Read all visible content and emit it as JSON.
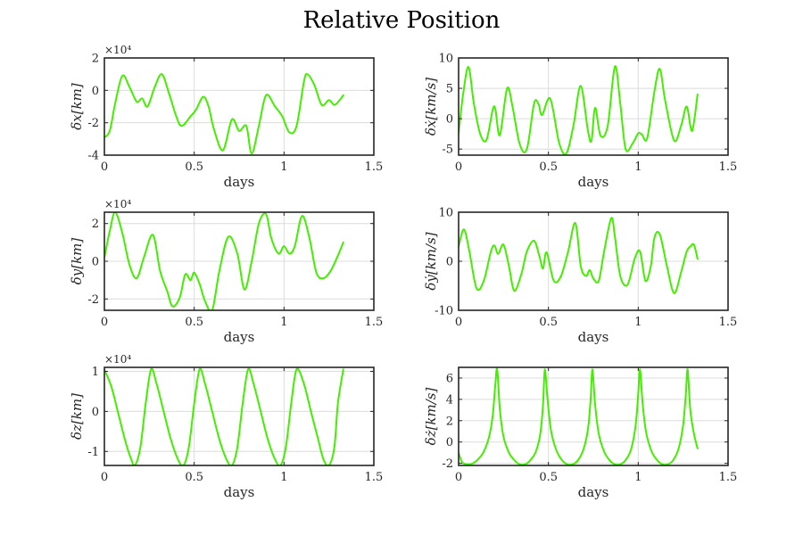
{
  "figure_title": "Relative Position",
  "colors": {
    "series": "#44ee00",
    "axes": "#262626",
    "grid": "#dcdcdc"
  },
  "chart_data": [
    {
      "type": "line",
      "xlabel": "days",
      "ylabel": "δx[km]",
      "y_exponent": "×10⁴",
      "xlim": [
        0,
        1.5
      ],
      "ylim": [
        -4,
        2
      ],
      "xticks": [
        "0",
        "0.5",
        "1",
        "1.5"
      ],
      "yticks": [
        "-4",
        "-2",
        "0",
        "2"
      ],
      "grid": true,
      "series": [
        {
          "x": [
            0,
            0.03,
            0.06,
            0.1,
            0.14,
            0.18,
            0.21,
            0.24,
            0.28,
            0.32,
            0.36,
            0.4,
            0.43,
            0.48,
            0.51,
            0.55,
            0.58,
            0.61,
            0.66,
            0.71,
            0.75,
            0.79,
            0.82,
            0.86,
            0.9,
            0.95,
            0.99,
            1.03,
            1.07,
            1.11,
            1.13,
            1.17,
            1.21,
            1.25,
            1.28,
            1.31,
            1.33
          ],
          "y": [
            -2.9,
            -2.5,
            -0.8,
            0.9,
            0.2,
            -0.7,
            -0.5,
            -1.0,
            0.2,
            1.0,
            -0.2,
            -1.6,
            -2.2,
            -1.6,
            -1.2,
            -0.4,
            -1.0,
            -2.4,
            -3.7,
            -1.8,
            -2.5,
            -2.2,
            -3.9,
            -2.2,
            -0.3,
            -1.0,
            -1.6,
            -2.6,
            -2.2,
            0.5,
            1.0,
            0.3,
            -0.9,
            -0.6,
            -0.9,
            -0.6,
            -0.3
          ]
        }
      ]
    },
    {
      "type": "line",
      "xlabel": "days",
      "ylabel": "δẋ[km/s]",
      "xlim": [
        0,
        1.5
      ],
      "ylim": [
        -6,
        10
      ],
      "xticks": [
        "0",
        "0.5",
        "1",
        "1.5"
      ],
      "yticks": [
        "-5",
        "0",
        "5",
        "10"
      ],
      "grid": true,
      "series": [
        {
          "x": [
            0,
            0.025,
            0.055,
            0.085,
            0.12,
            0.155,
            0.19,
            0.205,
            0.23,
            0.27,
            0.3,
            0.34,
            0.38,
            0.42,
            0.445,
            0.465,
            0.51,
            0.56,
            0.6,
            0.64,
            0.68,
            0.72,
            0.74,
            0.76,
            0.79,
            0.83,
            0.87,
            0.9,
            0.93,
            0.97,
            1.0,
            1.02,
            1.05,
            1.09,
            1.12,
            1.15,
            1.2,
            1.24,
            1.27,
            1.3,
            1.33
          ],
          "y": [
            -2.5,
            4.0,
            8.5,
            2.5,
            -2.5,
            -3.5,
            1.5,
            1.5,
            -2.7,
            5.0,
            2.0,
            -4.2,
            -5.0,
            2.5,
            2.4,
            0.6,
            3.3,
            -4.0,
            -5.7,
            -1.0,
            5.4,
            -2.0,
            -3.6,
            1.8,
            -2.8,
            -1.2,
            8.6,
            2.5,
            -5.0,
            -4.0,
            -2.4,
            -2.6,
            -3.2,
            4.5,
            8.2,
            3.0,
            -3.6,
            -1.0,
            2.0,
            -2.0,
            4.0
          ]
        }
      ]
    },
    {
      "type": "line",
      "xlabel": "days",
      "ylabel": "δy[km]",
      "y_exponent": "×10⁴",
      "xlim": [
        0,
        1.5
      ],
      "ylim": [
        -2.6,
        2.6
      ],
      "xticks": [
        "0",
        "0.5",
        "1",
        "1.5"
      ],
      "yticks": [
        "-2",
        "0",
        "2"
      ],
      "grid": true,
      "series": [
        {
          "x": [
            0,
            0.03,
            0.06,
            0.1,
            0.14,
            0.18,
            0.22,
            0.27,
            0.31,
            0.35,
            0.38,
            0.42,
            0.45,
            0.48,
            0.5,
            0.53,
            0.56,
            0.6,
            0.64,
            0.69,
            0.74,
            0.78,
            0.82,
            0.86,
            0.9,
            0.93,
            0.97,
            1.0,
            1.03,
            1.06,
            1.1,
            1.14,
            1.18,
            1.22,
            1.26,
            1.3,
            1.33
          ],
          "y": [
            0.2,
            1.6,
            2.6,
            1.5,
            -0.2,
            -0.9,
            0.2,
            1.4,
            -0.5,
            -1.6,
            -2.4,
            -1.9,
            -0.7,
            -1.0,
            -0.6,
            -1.2,
            -2.1,
            -2.6,
            -0.5,
            1.3,
            0.4,
            -1.5,
            0.0,
            2.0,
            2.5,
            1.2,
            0.4,
            0.8,
            0.4,
            0.8,
            2.4,
            1.3,
            -0.6,
            -0.9,
            -0.5,
            0.3,
            1.0
          ]
        }
      ]
    },
    {
      "type": "line",
      "xlabel": "days",
      "ylabel": "δẏ[km/s]",
      "xlim": [
        0,
        1.5
      ],
      "ylim": [
        -10,
        10
      ],
      "xticks": [
        "0",
        "0.5",
        "1",
        "1.5"
      ],
      "yticks": [
        "-10",
        "0",
        "10"
      ],
      "grid": true,
      "series": [
        {
          "x": [
            0,
            0.03,
            0.06,
            0.1,
            0.14,
            0.18,
            0.2,
            0.22,
            0.25,
            0.28,
            0.31,
            0.35,
            0.38,
            0.42,
            0.45,
            0.47,
            0.49,
            0.53,
            0.57,
            0.61,
            0.65,
            0.68,
            0.71,
            0.73,
            0.75,
            0.78,
            0.81,
            0.85,
            0.87,
            0.9,
            0.94,
            0.98,
            1.01,
            1.04,
            1.07,
            1.09,
            1.12,
            1.16,
            1.2,
            1.24,
            1.27,
            1.29,
            1.31,
            1.33
          ],
          "y": [
            3.0,
            6.5,
            2.0,
            -5.5,
            -4.0,
            2.0,
            3.2,
            1.5,
            3.4,
            -1.0,
            -6.0,
            -2.5,
            2.0,
            4.2,
            1.0,
            -1.5,
            1.8,
            -4.0,
            -3.0,
            2.0,
            7.8,
            -1.0,
            -3.0,
            -1.8,
            -3.5,
            -4.0,
            2.0,
            8.8,
            5.0,
            -3.0,
            -4.8,
            0.5,
            2.0,
            -4.0,
            -1.0,
            4.8,
            5.5,
            -1.0,
            -6.5,
            -2.0,
            2.0,
            3.0,
            3.4,
            0.5
          ]
        }
      ]
    },
    {
      "type": "line",
      "xlabel": "days",
      "ylabel": "δz[km]",
      "y_exponent": "×10⁴",
      "xlim": [
        0,
        1.5
      ],
      "ylim": [
        -1.35,
        1.1
      ],
      "xticks": [
        "0",
        "0.5",
        "1",
        "1.5"
      ],
      "yticks": [
        "-1",
        "0",
        "1"
      ],
      "grid": true,
      "series": [
        {
          "x": [
            0,
            0.04,
            0.08,
            0.12,
            0.15,
            0.17,
            0.2,
            0.23,
            0.26,
            0.29,
            0.33,
            0.37,
            0.41,
            0.44,
            0.47,
            0.5,
            0.53,
            0.56,
            0.6,
            0.64,
            0.68,
            0.71,
            0.74,
            0.77,
            0.8,
            0.83,
            0.87,
            0.91,
            0.95,
            0.98,
            1.01,
            1.04,
            1.07,
            1.11,
            1.15,
            1.19,
            1.22,
            1.25,
            1.28,
            1.3,
            1.33
          ],
          "y": [
            1.05,
            0.6,
            -0.1,
            -0.8,
            -1.2,
            -1.35,
            -0.9,
            0.2,
            1.05,
            0.7,
            0.0,
            -0.7,
            -1.2,
            -1.35,
            -0.9,
            0.2,
            1.05,
            0.7,
            0.0,
            -0.7,
            -1.2,
            -1.35,
            -0.9,
            0.2,
            1.05,
            0.7,
            0.0,
            -0.7,
            -1.2,
            -1.35,
            -0.9,
            0.2,
            1.05,
            0.7,
            0.0,
            -0.7,
            -1.2,
            -1.35,
            -0.9,
            0.2,
            1.05
          ]
        }
      ]
    },
    {
      "type": "line",
      "xlabel": "days",
      "ylabel": "δż[km/s]",
      "xlim": [
        0,
        1.5
      ],
      "ylim": [
        -2.2,
        7
      ],
      "xticks": [
        "0",
        "0.5",
        "1",
        "1.5"
      ],
      "yticks": [
        "-2",
        "0",
        "2",
        "4",
        "6"
      ],
      "grid": true,
      "series": [
        {
          "x": [
            0,
            0.02,
            0.05,
            0.08,
            0.11,
            0.14,
            0.17,
            0.19,
            0.205,
            0.215,
            0.23,
            0.25,
            0.28,
            0.31,
            0.34,
            0.37,
            0.4,
            0.43,
            0.455,
            0.47,
            0.48,
            0.495,
            0.515,
            0.545,
            0.575,
            0.605,
            0.635,
            0.665,
            0.695,
            0.72,
            0.735,
            0.745,
            0.76,
            0.78,
            0.81,
            0.84,
            0.87,
            0.9,
            0.93,
            0.96,
            0.985,
            1.0,
            1.01,
            1.025,
            1.045,
            1.075,
            1.105,
            1.135,
            1.165,
            1.195,
            1.225,
            1.25,
            1.265,
            1.275,
            1.29,
            1.31,
            1.33
          ],
          "y": [
            -1.0,
            -1.9,
            -2.1,
            -2.0,
            -1.6,
            -0.9,
            0.5,
            2.5,
            5.5,
            6.8,
            3.0,
            0.5,
            -1.0,
            -1.7,
            -2.1,
            -2.1,
            -1.7,
            -0.9,
            0.8,
            3.5,
            6.8,
            4.0,
            1.0,
            -0.8,
            -1.7,
            -2.1,
            -2.1,
            -1.7,
            -0.7,
            1.2,
            4.0,
            6.8,
            3.5,
            0.8,
            -0.9,
            -1.7,
            -2.1,
            -2.1,
            -1.7,
            -0.7,
            1.5,
            4.5,
            6.8,
            3.5,
            0.8,
            -0.9,
            -1.7,
            -2.1,
            -2.1,
            -1.7,
            -0.6,
            1.6,
            4.5,
            6.8,
            3.0,
            0.8,
            -0.6
          ]
        }
      ]
    }
  ]
}
